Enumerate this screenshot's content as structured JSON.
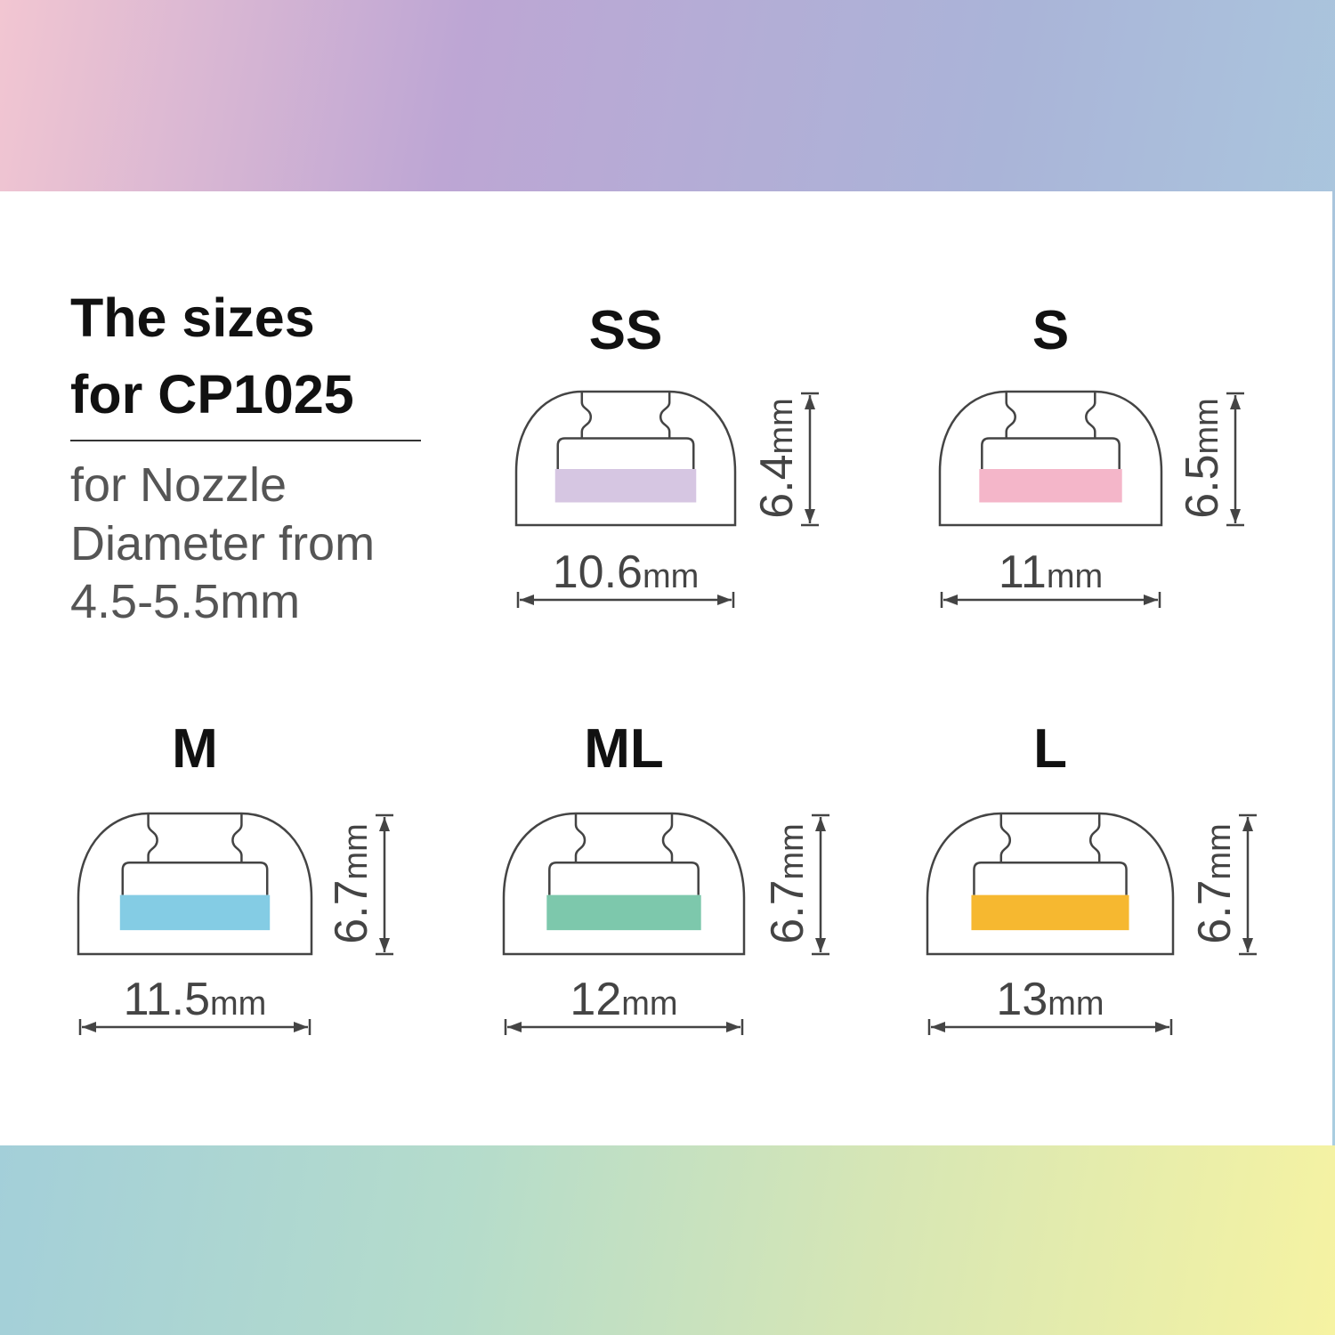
{
  "heading": {
    "line1": "The sizes",
    "line2": "for CP1025"
  },
  "subheading": {
    "line1": "for Nozzle",
    "line2": "Diameter from",
    "line3": "4.5-5.5mm"
  },
  "unit": "mm",
  "tips": [
    {
      "size": "SS",
      "width": "10.6",
      "height": "6.4",
      "color": "#d6c6e2"
    },
    {
      "size": "S",
      "width": "11",
      "height": "6.5",
      "color": "#f4b6c9"
    },
    {
      "size": "M",
      "width": "11.5",
      "height": "6.7",
      "color": "#84cce4"
    },
    {
      "size": "ML",
      "width": "12",
      "height": "6.7",
      "color": "#7dc8ac"
    },
    {
      "size": "L",
      "width": "13",
      "height": "6.7",
      "color": "#f6b830"
    }
  ]
}
